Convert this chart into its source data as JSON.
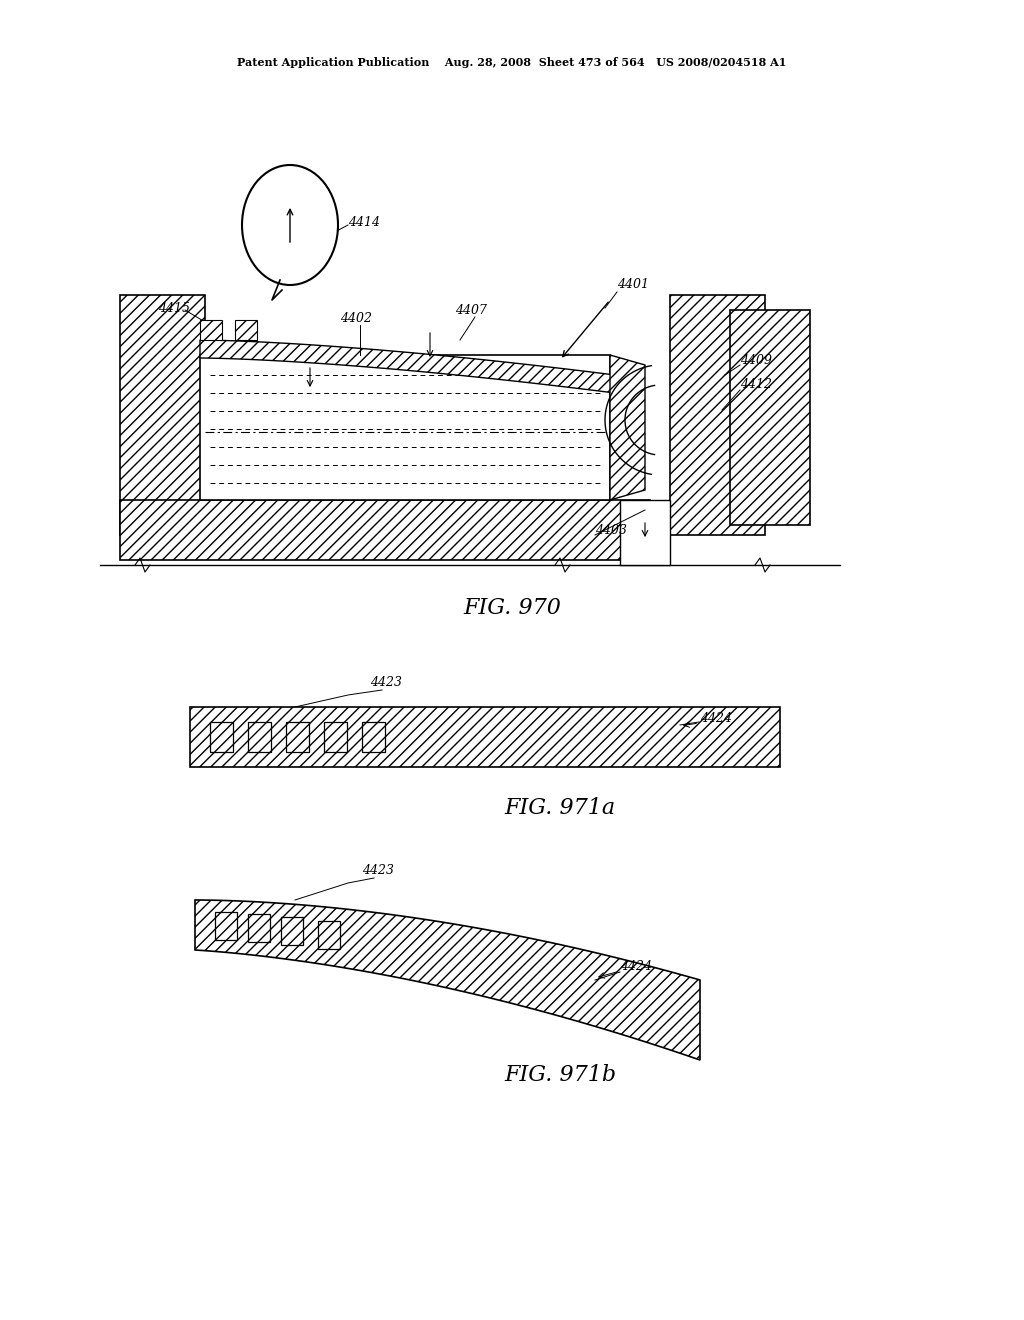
{
  "bg_color": "#ffffff",
  "header_text": "Patent Application Publication    Aug. 28, 2008  Sheet 473 of 564   US 2008/0204518 A1",
  "fig970_label": "FIG. 970",
  "fig971a_label": "FIG. 971a",
  "fig971b_label": "FIG. 971b"
}
